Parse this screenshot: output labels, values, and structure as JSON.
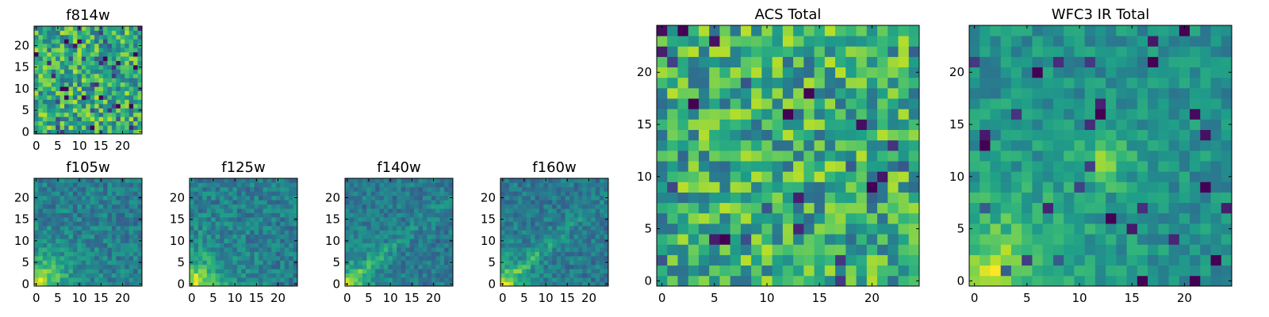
{
  "chart_data": [
    {
      "type": "heatmap",
      "title": "f814w",
      "xlabel": "",
      "ylabel": "",
      "xlim": [
        -0.5,
        24.5
      ],
      "ylim": [
        -0.5,
        24.5
      ],
      "xticks": [
        0,
        5,
        10,
        15,
        20
      ],
      "yticks": [
        0,
        5,
        10,
        15,
        20
      ],
      "colormap": "viridis",
      "pattern": "noise"
    },
    {
      "type": "heatmap",
      "title": "f105w",
      "xlabel": "",
      "ylabel": "",
      "xlim": [
        -0.5,
        24.5
      ],
      "ylim": [
        -0.5,
        24.5
      ],
      "xticks": [
        0,
        5,
        10,
        15,
        20
      ],
      "yticks": [
        0,
        5,
        10,
        15,
        20
      ],
      "colormap": "viridis",
      "pattern": "bright-lower-left"
    },
    {
      "type": "heatmap",
      "title": "f125w",
      "xlabel": "",
      "ylabel": "",
      "xlim": [
        -0.5,
        24.5
      ],
      "ylim": [
        -0.5,
        24.5
      ],
      "xticks": [
        0,
        5,
        10,
        15,
        20
      ],
      "yticks": [
        0,
        5,
        10,
        15,
        20
      ],
      "colormap": "viridis",
      "pattern": "bright-lower-left"
    },
    {
      "type": "heatmap",
      "title": "f140w",
      "xlabel": "",
      "ylabel": "",
      "xlim": [
        -0.5,
        24.5
      ],
      "ylim": [
        -0.5,
        24.5
      ],
      "xticks": [
        0,
        5,
        10,
        15,
        20
      ],
      "yticks": [
        0,
        5,
        10,
        15,
        20
      ],
      "colormap": "viridis",
      "pattern": "bright-diagonal"
    },
    {
      "type": "heatmap",
      "title": "f160w",
      "xlabel": "",
      "ylabel": "",
      "xlim": [
        -0.5,
        24.5
      ],
      "ylim": [
        -0.5,
        24.5
      ],
      "xticks": [
        0,
        5,
        10,
        15,
        20
      ],
      "yticks": [
        0,
        5,
        10,
        15,
        20
      ],
      "colormap": "viridis",
      "pattern": "bright-diagonal"
    },
    {
      "type": "heatmap",
      "title": "ACS Total",
      "xlabel": "",
      "ylabel": "",
      "xlim": [
        -0.5,
        24.5
      ],
      "ylim": [
        -0.5,
        24.5
      ],
      "xticks": [
        0,
        5,
        10,
        15,
        20
      ],
      "yticks": [
        0,
        5,
        10,
        15,
        20
      ],
      "colormap": "viridis",
      "pattern": "noise"
    },
    {
      "type": "heatmap",
      "title": "WFC3 IR Total",
      "xlabel": "",
      "ylabel": "",
      "xlim": [
        -0.5,
        24.5
      ],
      "ylim": [
        -0.5,
        24.5
      ],
      "xticks": [
        0,
        5,
        10,
        15,
        20
      ],
      "yticks": [
        0,
        5,
        10,
        15,
        20
      ],
      "colormap": "viridis",
      "pattern": "bright-lower-left-blob"
    }
  ]
}
